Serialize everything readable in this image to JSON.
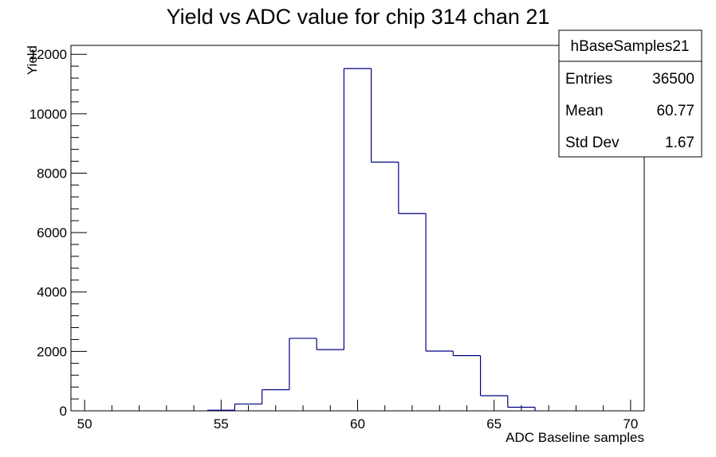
{
  "chart_data": {
    "type": "histogram",
    "title": "Yield vs ADC value for chip 314 chan 21",
    "xlabel": "ADC Baseline samples",
    "ylabel": "Yield",
    "xlim": [
      49.5,
      70.5
    ],
    "ylim": [
      0,
      12300
    ],
    "x_ticks": [
      50,
      55,
      60,
      65,
      70
    ],
    "y_ticks": [
      0,
      2000,
      4000,
      6000,
      8000,
      10000,
      12000
    ],
    "grid": false,
    "series": [
      {
        "color": "#000080",
        "bins": [
          {
            "x_low": 54.5,
            "x_high": 55.5,
            "value": 20
          },
          {
            "x_low": 55.5,
            "x_high": 56.5,
            "value": 230
          },
          {
            "x_low": 56.5,
            "x_high": 57.5,
            "value": 710
          },
          {
            "x_low": 57.5,
            "x_high": 58.5,
            "value": 2440
          },
          {
            "x_low": 58.5,
            "x_high": 59.5,
            "value": 2060
          },
          {
            "x_low": 59.5,
            "x_high": 60.5,
            "value": 11520
          },
          {
            "x_low": 60.5,
            "x_high": 61.5,
            "value": 8370
          },
          {
            "x_low": 61.5,
            "x_high": 62.5,
            "value": 6640
          },
          {
            "x_low": 62.5,
            "x_high": 63.5,
            "value": 2010
          },
          {
            "x_low": 63.5,
            "x_high": 64.5,
            "value": 1860
          },
          {
            "x_low": 64.5,
            "x_high": 65.5,
            "value": 510
          },
          {
            "x_low": 65.5,
            "x_high": 66.5,
            "value": 120
          }
        ]
      }
    ],
    "stats_box": {
      "name": "hBaseSamples21",
      "rows": [
        {
          "label": "Entries",
          "value": "36500"
        },
        {
          "label": "Mean",
          "value": "60.77"
        },
        {
          "label": "Std Dev",
          "value": "1.67"
        }
      ]
    }
  }
}
